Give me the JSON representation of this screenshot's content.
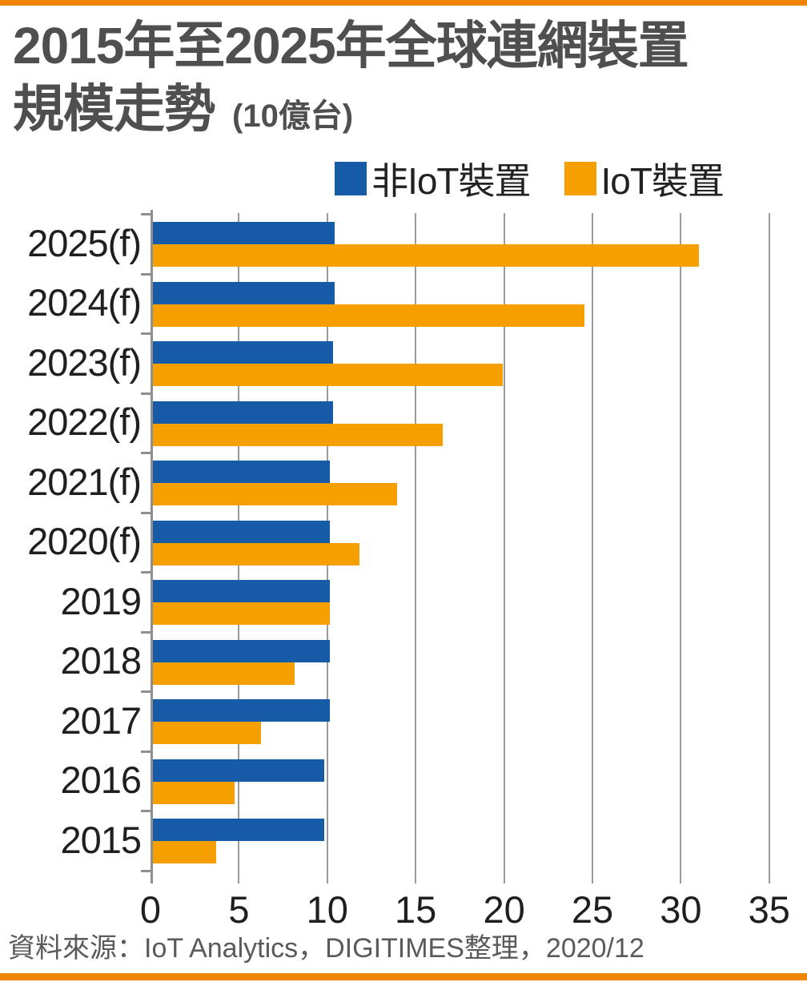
{
  "page": {
    "title_line1": "2015年至2025年全球連網裝置",
    "title_line2": "規模走勢",
    "title_unit": "(10億台)",
    "source": "資料來源：IoT Analytics，DIGITIMES整理，2020/12"
  },
  "colors": {
    "non_iot_blue": "#165ba5",
    "iot_orange": "#f5a000",
    "accent_stripe": "#ef8500",
    "gridline_gray": "#9b9b9b",
    "title_text": "#4f4f4f",
    "axis_text": "#1f1f1f",
    "source_text": "#5a5a5a"
  },
  "legend": {
    "items": [
      {
        "label": "非IoT裝置",
        "series_key": "non_iot"
      },
      {
        "label": "IoT裝置",
        "series_key": "iot"
      }
    ]
  },
  "chart_data": {
    "type": "bar",
    "orientation": "horizontal",
    "title": "2015年至2025年全球連網裝置規模走勢",
    "unit": "10億台",
    "categories": [
      "2025(f)",
      "2024(f)",
      "2023(f)",
      "2022(f)",
      "2021(f)",
      "2020(f)",
      "2019",
      "2018",
      "2017",
      "2016",
      "2015"
    ],
    "series": [
      {
        "name": "非IoT裝置",
        "color": "#165ba5",
        "values": [
          10.3,
          10.3,
          10.2,
          10.2,
          10.0,
          10.0,
          10.0,
          10.0,
          10.0,
          9.7,
          9.7
        ]
      },
      {
        "name": "IoT裝置",
        "color": "#f5a000",
        "values": [
          30.9,
          24.4,
          19.8,
          16.4,
          13.8,
          11.7,
          10.0,
          8.0,
          6.1,
          4.6,
          3.6
        ]
      }
    ],
    "x_ticks": [
      0,
      5,
      10,
      15,
      20,
      25,
      30,
      35
    ],
    "xlim": [
      0,
      35
    ],
    "grid": true,
    "legend_position": "top-right",
    "group_order_top_to_bottom": "blue (non-IoT) bar above orange (IoT) bar in each year group"
  }
}
